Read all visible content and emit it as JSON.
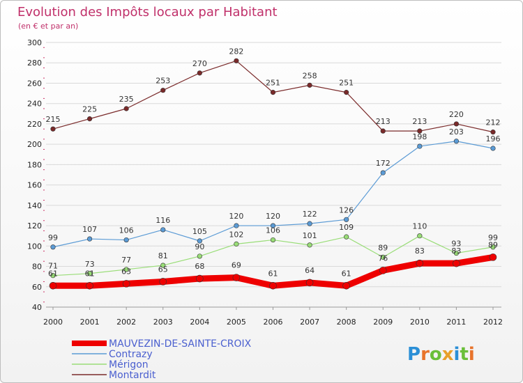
{
  "chart_data": {
    "type": "line",
    "title": "Evolution des Impôts locaux par Habitant",
    "subtitle": "(en € et par an)",
    "xlabel": "",
    "ylabel": "",
    "ylim": [
      40,
      300
    ],
    "ytick_step": 20,
    "grid": true,
    "legend_position": "bottom-left",
    "categories": [
      "2000",
      "2001",
      "2002",
      "2003",
      "2004",
      "2005",
      "2006",
      "2007",
      "2008",
      "2009",
      "2010",
      "2011",
      "2012"
    ],
    "series": [
      {
        "name": "Montardit",
        "color": "#7a2a2a",
        "width": 1.2,
        "values": [
          215,
          225,
          235,
          253,
          270,
          282,
          251,
          258,
          251,
          213,
          213,
          220,
          212
        ],
        "labels": [
          "215",
          "225",
          "235",
          "253",
          "270",
          "282",
          "251",
          "258",
          "251",
          "213",
          "213",
          "220",
          "212"
        ]
      },
      {
        "name": "Contrazy",
        "color": "#5b9bd5",
        "width": 1.2,
        "values": [
          99,
          107,
          106,
          116,
          105,
          120,
          120,
          122,
          126,
          172,
          198,
          203,
          196
        ],
        "labels": [
          "99",
          "107",
          "106",
          "116",
          "105",
          "120",
          "120",
          "122",
          "126",
          "172",
          "198",
          "203",
          "196"
        ]
      },
      {
        "name": "Mérigon",
        "color": "#99dd77",
        "width": 1.2,
        "values": [
          71,
          73,
          77,
          81,
          90,
          102,
          106,
          101,
          109,
          89,
          110,
          93,
          99
        ],
        "labels": [
          "71",
          "73",
          "77",
          "81",
          "90",
          "102",
          "106",
          "101",
          "109",
          "89",
          "110",
          "93",
          "99"
        ]
      },
      {
        "name": "MAUVEZIN-DE-SAINTE-CROIX",
        "color": "#ee0000",
        "width": 9,
        "values": [
          61,
          61,
          63,
          65,
          68,
          69,
          61,
          64,
          61,
          76,
          83,
          83,
          89
        ],
        "labels": [
          "61",
          "61",
          "63",
          "65",
          "68",
          "69",
          "61",
          "64",
          "61",
          "76",
          "83",
          "83",
          "89"
        ]
      }
    ],
    "legend": [
      "MAUVEZIN-DE-SAINTE-CROIX",
      "Contrazy",
      "Mérigon",
      "Montardit"
    ]
  },
  "logo": {
    "text": "Proxiti"
  }
}
